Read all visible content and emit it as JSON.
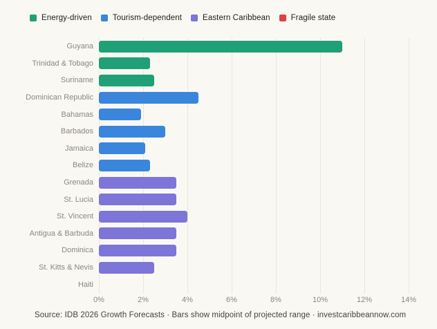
{
  "legend": {
    "items": [
      {
        "label": "Energy-driven",
        "color": "#1fa076"
      },
      {
        "label": "Tourism-dependent",
        "color": "#3a86dc"
      },
      {
        "label": "Eastern Caribbean",
        "color": "#7d75d7"
      },
      {
        "label": "Fragile state",
        "color": "#e04141"
      }
    ]
  },
  "chart_data": {
    "type": "bar",
    "orientation": "horizontal",
    "title": "",
    "xlabel": "",
    "ylabel": "",
    "unit": "%",
    "xlim": [
      0,
      14.6
    ],
    "x_ticks": [
      "0%",
      "2%",
      "4%",
      "6%",
      "8%",
      "10%",
      "12%",
      "14%"
    ],
    "tick_step_pct": 2,
    "grid": true,
    "legend_position": "top-left",
    "rows": [
      {
        "label": "Guyana",
        "value": 11.0,
        "group": "Energy-driven"
      },
      {
        "label": "Trinidad & Tobago",
        "value": 2.3,
        "group": "Energy-driven"
      },
      {
        "label": "Suriname",
        "value": 2.5,
        "group": "Energy-driven"
      },
      {
        "label": "Dominican Republic",
        "value": 4.5,
        "group": "Tourism-dependent"
      },
      {
        "label": "Bahamas",
        "value": 1.9,
        "group": "Tourism-dependent"
      },
      {
        "label": "Barbados",
        "value": 3.0,
        "group": "Tourism-dependent"
      },
      {
        "label": "Jamaica",
        "value": 2.1,
        "group": "Tourism-dependent"
      },
      {
        "label": "Belize",
        "value": 2.3,
        "group": "Tourism-dependent"
      },
      {
        "label": "Grenada",
        "value": 3.5,
        "group": "Eastern Caribbean"
      },
      {
        "label": "St. Lucia",
        "value": 3.5,
        "group": "Eastern Caribbean"
      },
      {
        "label": "St. Vincent",
        "value": 4.0,
        "group": "Eastern Caribbean"
      },
      {
        "label": "Antigua & Barbuda",
        "value": 3.5,
        "group": "Eastern Caribbean"
      },
      {
        "label": "Dominica",
        "value": 3.5,
        "group": "Eastern Caribbean"
      },
      {
        "label": "St. Kitts & Nevis",
        "value": 2.5,
        "group": "Eastern Caribbean"
      },
      {
        "label": "Haiti",
        "value": 0.0,
        "group": "Fragile state"
      }
    ]
  },
  "source": "Source: IDB 2026 Growth Forecasts · Bars show midpoint of projected range · investcaribbeannow.com",
  "colors": {
    "background": "#faf8f3",
    "gridline": "#e9e6e0",
    "label_text": "#8b8680",
    "legend_text": "#21201c",
    "source_text": "#45413a"
  }
}
